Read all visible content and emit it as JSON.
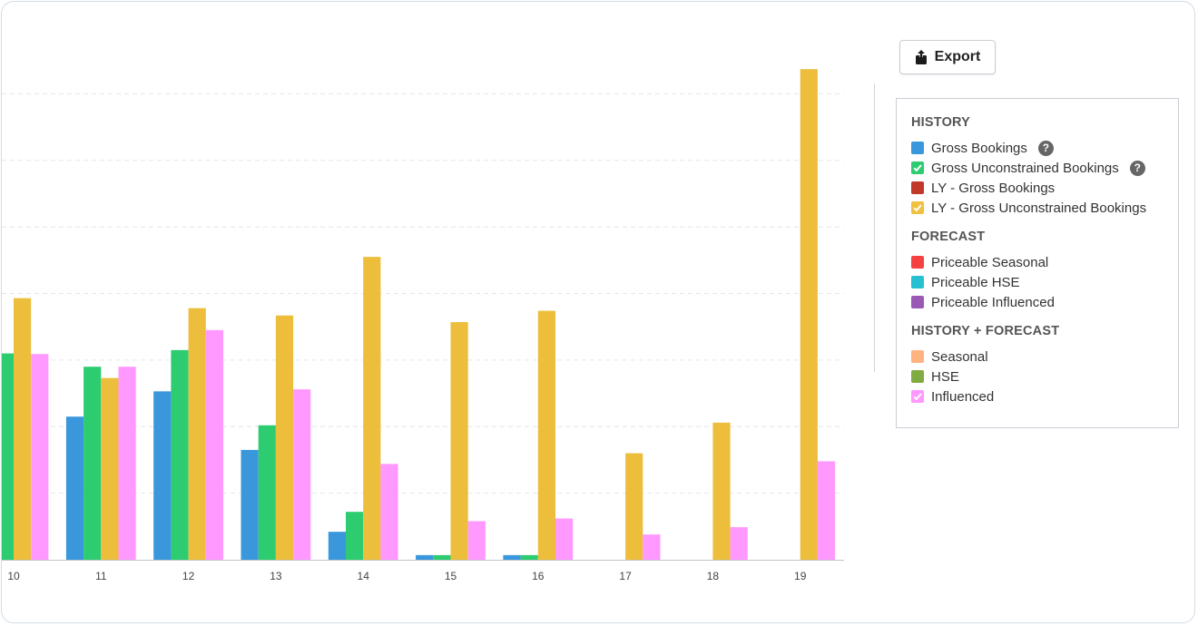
{
  "export_button": {
    "label": "Export"
  },
  "legend": {
    "groups": [
      {
        "title": "HISTORY",
        "items": [
          {
            "label": "Gross Bookings",
            "color": "#3a97dc",
            "checked": false,
            "help": true
          },
          {
            "label": "Gross Unconstrained Bookings",
            "color": "#2ecc71",
            "checked": true,
            "help": true
          },
          {
            "label": "LY - Gross Bookings",
            "color": "#c0392b",
            "checked": false,
            "help": false
          },
          {
            "label": "LY - Gross Unconstrained Bookings",
            "color": "#f0c040",
            "checked": true,
            "help": false
          }
        ]
      },
      {
        "title": "FORECAST",
        "items": [
          {
            "label": "Priceable Seasonal",
            "color": "#f5413f",
            "checked": false,
            "help": false
          },
          {
            "label": "Priceable HSE",
            "color": "#26c0d3",
            "checked": false,
            "help": false
          },
          {
            "label": "Priceable Influenced",
            "color": "#9b59b6",
            "checked": false,
            "help": false
          }
        ]
      },
      {
        "title": "HISTORY + FORECAST",
        "items": [
          {
            "label": "Seasonal",
            "color": "#ffb380",
            "checked": false,
            "help": false
          },
          {
            "label": "HSE",
            "color": "#7fab41",
            "checked": false,
            "help": false
          },
          {
            "label": "Influenced",
            "color": "#ff99ff",
            "checked": true,
            "help": false
          }
        ]
      }
    ]
  },
  "chart_data": {
    "type": "bar",
    "categories": [
      "10",
      "11",
      "12",
      "13",
      "14",
      "15",
      "16",
      "17",
      "18",
      "19"
    ],
    "ylim": [
      0,
      8
    ],
    "grid": true,
    "series": [
      {
        "name": "Gross Bookings",
        "color": "#3a97dc",
        "values": [
          0,
          2.15,
          2.53,
          1.65,
          0.42,
          0.07,
          0.07,
          0,
          0,
          0
        ]
      },
      {
        "name": "Gross Unconstrained Bookings",
        "color": "#2ecc71",
        "values": [
          3.1,
          2.9,
          3.15,
          2.02,
          0.72,
          0.07,
          0.07,
          0,
          0,
          0
        ]
      },
      {
        "name": "LY - Gross Unconstrained Bookings",
        "color": "#ecbe3c",
        "values": [
          3.93,
          2.73,
          3.78,
          3.67,
          4.55,
          3.57,
          3.74,
          1.6,
          2.06,
          7.37
        ]
      },
      {
        "name": "Influenced",
        "color": "#ff99ff",
        "values": [
          3.09,
          2.9,
          3.45,
          2.56,
          1.44,
          0.58,
          0.62,
          0.38,
          0.49,
          1.48
        ]
      }
    ]
  }
}
